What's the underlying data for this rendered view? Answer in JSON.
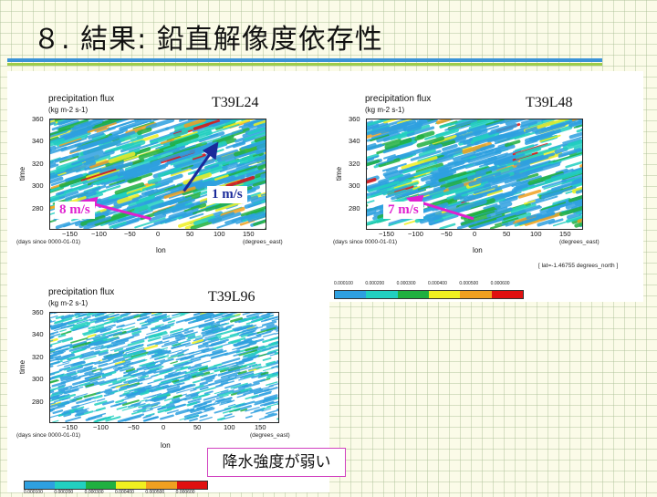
{
  "slide": {
    "title": "８. 結果: 鉛直解像度依存性",
    "note": "降水強度が弱い",
    "accent_colors": {
      "bar_top": "#3a93d8",
      "bar_bottom": "#9dcc4a",
      "note_border": "#d040c0"
    }
  },
  "chart_data": [
    {
      "type": "heatmap",
      "resolution_label": "T39L24",
      "title": "precipitation flux",
      "units": "(kg m-2 s-1)",
      "ylabel": "time",
      "xlabel": "lon",
      "x_ticks": [
        -150,
        -100,
        -50,
        0,
        50,
        100,
        150
      ],
      "x_tick_labels": [
        "−150",
        "−100",
        "−50",
        "0",
        "50",
        "100",
        "150"
      ],
      "y_ticks": [
        280,
        300,
        320,
        340,
        360
      ],
      "x_unit_note": "(degrees_east)",
      "y_unit_note": "(days since 0000-01-01)",
      "xlim": [
        -180,
        180
      ],
      "ylim": [
        265,
        360
      ],
      "annotations": [
        {
          "text": "8 m/s",
          "color": "#e020d0",
          "arrow_from": [
            -10,
            273
          ],
          "arrow_to": [
            -115,
            287
          ]
        },
        {
          "text": "1 m/s",
          "color": "#1a2a9a",
          "arrow_from": [
            45,
            297
          ],
          "arrow_to": [
            95,
            334
          ]
        }
      ],
      "streak_direction": "westward"
    },
    {
      "type": "heatmap",
      "resolution_label": "T39L48",
      "title": "precipitation flux",
      "units": "(kg m-2 s-1)",
      "ylabel": "time",
      "xlabel": "lon",
      "x_ticks": [
        -150,
        -100,
        -50,
        0,
        50,
        100,
        150
      ],
      "x_tick_labels": [
        "−150",
        "−100",
        "−50",
        "0",
        "50",
        "100",
        "150"
      ],
      "y_ticks": [
        280,
        300,
        320,
        340,
        360
      ],
      "x_unit_note": "(degrees_east)",
      "y_unit_note": "(days since 0000-01-01)",
      "xlim": [
        -180,
        180
      ],
      "ylim": [
        265,
        360
      ],
      "footnote": "[ lat=-1.46755 degrees_north ]",
      "annotations": [
        {
          "text": "7 m/s",
          "color": "#e020d0",
          "arrow_from": [
            0,
            273
          ],
          "arrow_to": [
            -100,
            289
          ]
        }
      ],
      "streak_direction": "westward"
    },
    {
      "type": "heatmap",
      "resolution_label": "T39L96",
      "title": "precipitation flux",
      "units": "(kg m-2 s-1)",
      "ylabel": "time",
      "xlabel": "lon",
      "x_ticks": [
        -150,
        -100,
        -50,
        0,
        50,
        100,
        150
      ],
      "x_tick_labels": [
        "−150",
        "−100",
        "−50",
        "0",
        "50",
        "100",
        "150"
      ],
      "y_ticks": [
        280,
        300,
        320,
        340,
        360
      ],
      "x_unit_note": "(degrees_east)",
      "y_unit_note": "(days since 0000-01-01)",
      "xlim": [
        -180,
        180
      ],
      "ylim": [
        265,
        360
      ],
      "annotations": [],
      "streak_direction": "westward"
    }
  ],
  "colorbar": {
    "ticks": [
      "0.000100",
      "0.000200",
      "0.000300",
      "0.000400",
      "0.000500",
      "0.000600"
    ],
    "colors": [
      "#2ea0e0",
      "#22d0c0",
      "#20b040",
      "#f0f020",
      "#f0a020",
      "#e01010"
    ]
  }
}
